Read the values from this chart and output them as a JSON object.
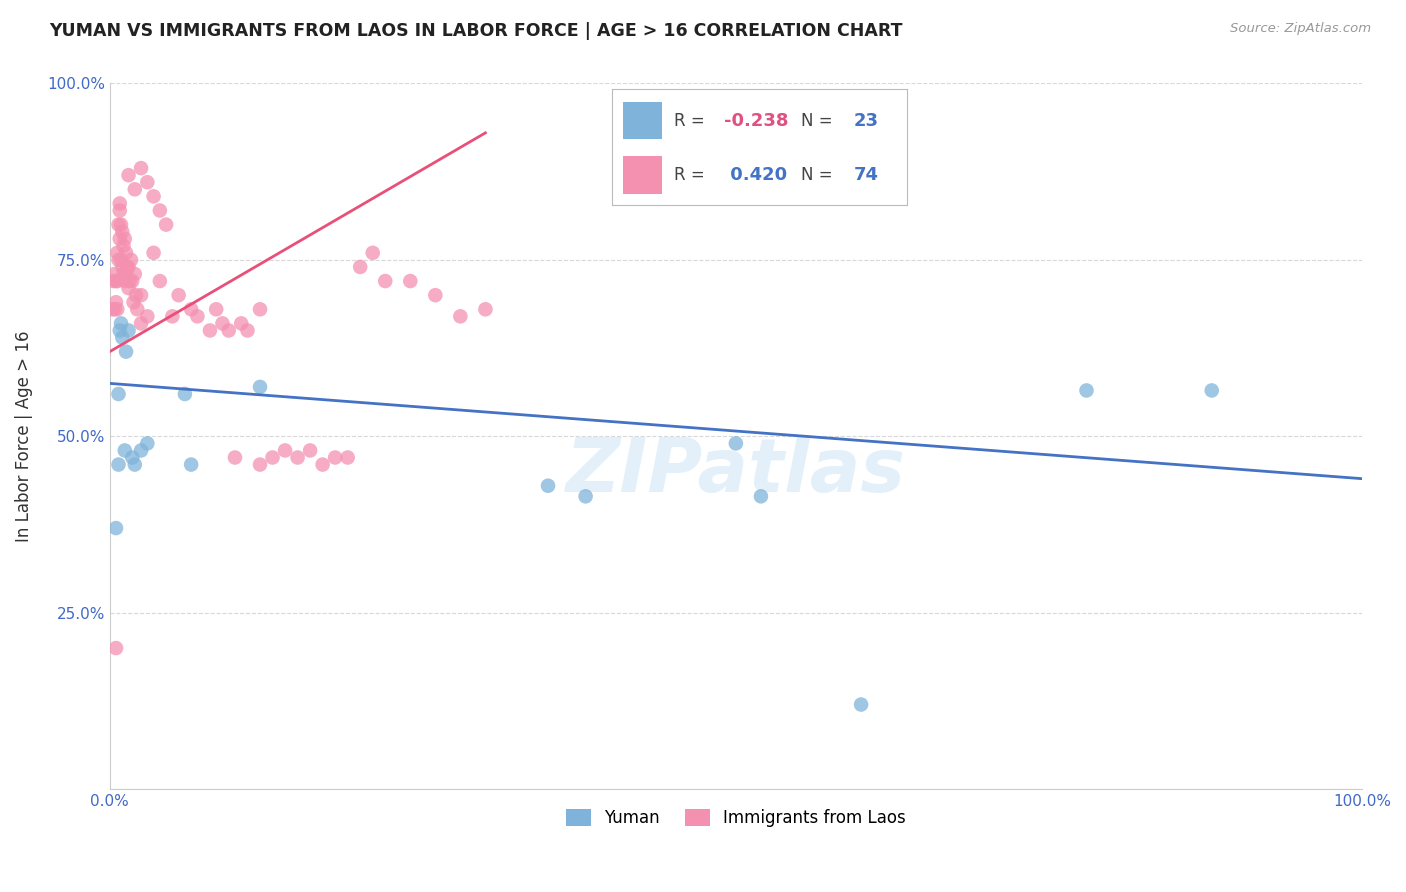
{
  "title": "YUMAN VS IMMIGRANTS FROM LAOS IN LABOR FORCE | AGE > 16 CORRELATION CHART",
  "source": "Source: ZipAtlas.com",
  "ylabel": "In Labor Force | Age > 16",
  "xlim": [
    0.0,
    1.0
  ],
  "ylim": [
    0.0,
    1.0
  ],
  "background_color": "#ffffff",
  "grid_color": "#d8d8d8",
  "legend_R1": "-0.238",
  "legend_N1": "23",
  "legend_R2": "0.420",
  "legend_N2": "74",
  "color_yuman": "#7fb3d9",
  "color_laos": "#f490b0",
  "line_color_yuman": "#4472c4",
  "line_color_laos": "#e8507a",
  "watermark": "ZIPatlas",
  "yuman_x": [
    0.005,
    0.007,
    0.008,
    0.009,
    0.01,
    0.012,
    0.013,
    0.015,
    0.018,
    0.02,
    0.025,
    0.03,
    0.06,
    0.065,
    0.12,
    0.35,
    0.38,
    0.5,
    0.52,
    0.6,
    0.78,
    0.88,
    0.007
  ],
  "yuman_y": [
    0.37,
    0.56,
    0.65,
    0.66,
    0.64,
    0.48,
    0.62,
    0.65,
    0.47,
    0.46,
    0.48,
    0.49,
    0.56,
    0.46,
    0.57,
    0.43,
    0.415,
    0.49,
    0.415,
    0.12,
    0.565,
    0.565,
    0.46
  ],
  "laos_x": [
    0.002,
    0.003,
    0.004,
    0.004,
    0.005,
    0.005,
    0.006,
    0.006,
    0.006,
    0.007,
    0.007,
    0.008,
    0.008,
    0.009,
    0.009,
    0.01,
    0.01,
    0.011,
    0.011,
    0.012,
    0.012,
    0.013,
    0.013,
    0.014,
    0.015,
    0.015,
    0.016,
    0.017,
    0.018,
    0.019,
    0.02,
    0.021,
    0.022,
    0.025,
    0.025,
    0.03,
    0.035,
    0.04,
    0.05,
    0.055,
    0.065,
    0.07,
    0.08,
    0.085,
    0.09,
    0.095,
    0.105,
    0.11,
    0.12,
    0.13,
    0.14,
    0.15,
    0.16,
    0.17,
    0.18,
    0.19,
    0.2,
    0.21,
    0.22,
    0.24,
    0.26,
    0.28,
    0.3,
    0.1,
    0.12,
    0.015,
    0.02,
    0.025,
    0.03,
    0.035,
    0.04,
    0.045,
    0.005,
    0.008
  ],
  "laos_y": [
    0.68,
    0.72,
    0.73,
    0.68,
    0.72,
    0.69,
    0.76,
    0.72,
    0.68,
    0.8,
    0.75,
    0.82,
    0.78,
    0.8,
    0.75,
    0.79,
    0.74,
    0.77,
    0.73,
    0.78,
    0.72,
    0.76,
    0.73,
    0.74,
    0.74,
    0.71,
    0.72,
    0.75,
    0.72,
    0.69,
    0.73,
    0.7,
    0.68,
    0.7,
    0.66,
    0.67,
    0.76,
    0.72,
    0.67,
    0.7,
    0.68,
    0.67,
    0.65,
    0.68,
    0.66,
    0.65,
    0.66,
    0.65,
    0.68,
    0.47,
    0.48,
    0.47,
    0.48,
    0.46,
    0.47,
    0.47,
    0.74,
    0.76,
    0.72,
    0.72,
    0.7,
    0.67,
    0.68,
    0.47,
    0.46,
    0.87,
    0.85,
    0.88,
    0.86,
    0.84,
    0.82,
    0.8,
    0.2,
    0.83
  ],
  "laos_line_x": [
    0.0,
    0.3
  ],
  "laos_line_y": [
    0.62,
    0.93
  ],
  "yuman_line_x": [
    0.0,
    1.0
  ],
  "yuman_line_y": [
    0.575,
    0.44
  ]
}
